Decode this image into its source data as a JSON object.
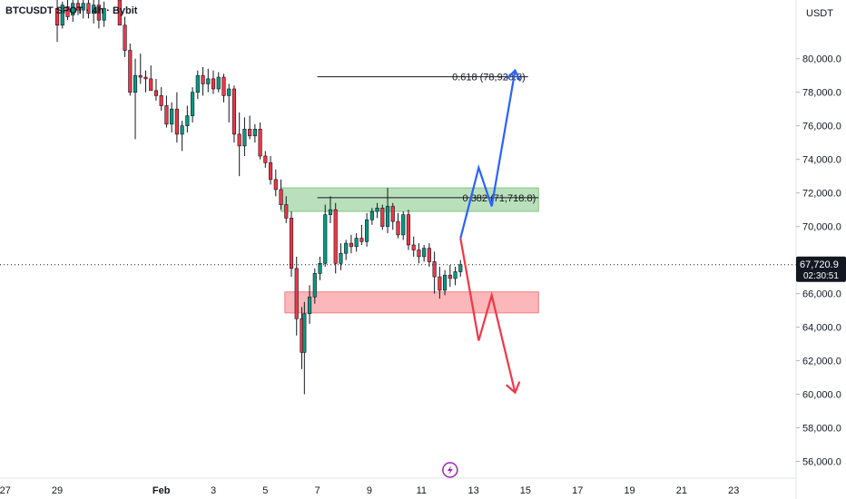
{
  "chart_data": {
    "type": "candlestick",
    "title": "BTCUSDT SPOT · 4h · Bybit",
    "currency_label": "USDT",
    "y_ticks": [
      "80,000.0",
      "78,000.0",
      "76,000.0",
      "74,000.0",
      "72,000.0",
      "70,000.0",
      "66,000.0",
      "64,000.0",
      "62,000.0",
      "60,000.0",
      "58,000.0",
      "56,000.0"
    ],
    "y_tick_values": [
      80000,
      78000,
      76000,
      74000,
      72000,
      70000,
      66000,
      64000,
      62000,
      60000,
      58000,
      56000
    ],
    "ylim": [
      55000,
      83500
    ],
    "x_ticks": [
      "27",
      "29",
      "Feb",
      "3",
      "5",
      "7",
      "9",
      "11",
      "13",
      "15",
      "17",
      "19",
      "21",
      "23"
    ],
    "x_tick_days": [
      -5,
      -3,
      1,
      3,
      5,
      7,
      9,
      11,
      13,
      15,
      17,
      19,
      21,
      23
    ],
    "xlim": [
      -5.2,
      25.4
    ],
    "current_price": {
      "label": "67,720.9",
      "countdown": "02:30:51",
      "value": 67720.9
    },
    "fib_levels": [
      {
        "label": "0.618 (78,920.8)",
        "value": 78920.8
      },
      {
        "label": "0.382 (71,718.8)",
        "value": 71718.8
      }
    ],
    "zones": [
      {
        "kind": "resistance",
        "top": 72300,
        "bottom": 70900,
        "color": "#81c784",
        "from_day": 5.6,
        "to_day": 15.5
      },
      {
        "kind": "support",
        "top": 66100,
        "bottom": 64850,
        "color": "#f77c80",
        "from_day": 5.75,
        "to_day": 15.5
      }
    ],
    "bullish_path": {
      "color": "#2962ff",
      "points": [
        [
          12.5,
          69300
        ],
        [
          13.2,
          73500
        ],
        [
          13.7,
          71200
        ],
        [
          14.6,
          79300
        ]
      ]
    },
    "bearish_path": {
      "color": "#f23645",
      "points": [
        [
          12.5,
          69300
        ],
        [
          13.2,
          63200
        ],
        [
          13.7,
          65900
        ],
        [
          14.6,
          60100
        ]
      ]
    },
    "up_color": "#089981",
    "down_color": "#f23645",
    "candles": [
      [
        -3.0,
        83000,
        83600,
        81000,
        82000
      ],
      [
        -2.8,
        82000,
        83400,
        81800,
        83200
      ],
      [
        -2.6,
        83100,
        83600,
        82300,
        82500
      ],
      [
        -2.4,
        82600,
        83700,
        82200,
        83300
      ],
      [
        -2.2,
        83300,
        83800,
        82600,
        82900
      ],
      [
        -2.0,
        82900,
        83500,
        82400,
        83300
      ],
      [
        -1.8,
        83300,
        83800,
        82400,
        82700
      ],
      [
        -1.6,
        82700,
        83500,
        82100,
        83200
      ],
      [
        -1.4,
        83200,
        83700,
        81800,
        82300
      ],
      [
        -1.2,
        82300,
        83400,
        81900,
        83000
      ],
      [
        -0.6,
        83500,
        83800,
        82000,
        82000
      ],
      [
        -0.4,
        82000,
        82500,
        80100,
        80500
      ],
      [
        -0.2,
        80500,
        80900,
        77800,
        78000
      ],
      [
        0.0,
        78000,
        80000,
        75200,
        79000
      ],
      [
        0.2,
        79000,
        80300,
        78500,
        78900
      ],
      [
        0.4,
        78900,
        79300,
        78000,
        78800
      ],
      [
        0.6,
        78800,
        79600,
        78200,
        78100
      ],
      [
        0.8,
        78100,
        78800,
        77500,
        77800
      ],
      [
        1.0,
        77800,
        78300,
        76900,
        77200
      ],
      [
        1.2,
        77200,
        77800,
        75900,
        76100
      ],
      [
        1.4,
        76100,
        77400,
        75600,
        77000
      ],
      [
        1.6,
        77000,
        78000,
        75000,
        75500
      ],
      [
        1.8,
        75500,
        76300,
        74500,
        76000
      ],
      [
        2.0,
        76000,
        77200,
        75600,
        76600
      ],
      [
        2.2,
        76600,
        78300,
        76200,
        78000
      ],
      [
        2.4,
        78000,
        79300,
        77600,
        79000
      ],
      [
        2.6,
        79000,
        79500,
        77800,
        78500
      ],
      [
        2.8,
        78500,
        79400,
        78000,
        78800
      ],
      [
        3.0,
        78800,
        79300,
        77900,
        78200
      ],
      [
        3.2,
        78200,
        79200,
        78000,
        78900
      ],
      [
        3.4,
        78900,
        79100,
        77400,
        77800
      ],
      [
        3.6,
        77800,
        78500,
        76200,
        78200
      ],
      [
        3.8,
        78200,
        78400,
        75000,
        75500
      ],
      [
        4.0,
        75500,
        76800,
        73000,
        74800
      ],
      [
        4.2,
        74800,
        76500,
        74200,
        75800
      ],
      [
        4.4,
        75800,
        76600,
        75200,
        75400
      ],
      [
        4.6,
        75400,
        76100,
        75000,
        75800
      ],
      [
        4.8,
        75800,
        76200,
        74000,
        74200
      ],
      [
        5.0,
        74200,
        74500,
        73500,
        73800
      ],
      [
        5.2,
        73800,
        74200,
        72500,
        72800
      ],
      [
        5.4,
        72800,
        73400,
        71800,
        72200
      ],
      [
        5.6,
        72200,
        72800,
        71000,
        71300
      ],
      [
        5.8,
        71300,
        71800,
        70200,
        70500
      ],
      [
        6.0,
        70500,
        70900,
        67000,
        67500
      ],
      [
        6.2,
        67500,
        68200,
        63500,
        64500
      ],
      [
        6.4,
        64500,
        65200,
        61500,
        62500
      ],
      [
        6.5,
        62500,
        65500,
        60000,
        64800
      ],
      [
        6.7,
        64800,
        66500,
        64200,
        65800
      ],
      [
        6.9,
        65800,
        67500,
        65400,
        67200
      ],
      [
        7.1,
        67200,
        68200,
        66800,
        67800
      ],
      [
        7.3,
        67800,
        71300,
        67600,
        70700
      ],
      [
        7.5,
        70700,
        71800,
        70200,
        71000
      ],
      [
        7.7,
        71000,
        71400,
        67200,
        67800
      ],
      [
        7.9,
        67800,
        69000,
        67400,
        68400
      ],
      [
        8.1,
        68400,
        69200,
        68000,
        69000
      ],
      [
        8.3,
        69000,
        69500,
        68400,
        68800
      ],
      [
        8.5,
        68800,
        69600,
        68500,
        69300
      ],
      [
        8.7,
        69300,
        70100,
        68900,
        69100
      ],
      [
        8.9,
        69100,
        70800,
        68800,
        70400
      ],
      [
        9.1,
        70400,
        71100,
        70100,
        70900
      ],
      [
        9.3,
        70900,
        71400,
        70500,
        71100
      ],
      [
        9.5,
        71100,
        71300,
        69800,
        70000
      ],
      [
        9.7,
        70000,
        72300,
        69600,
        71200
      ],
      [
        9.9,
        71200,
        71400,
        69800,
        70300
      ],
      [
        10.1,
        70300,
        70800,
        69300,
        69500
      ],
      [
        10.3,
        69500,
        70900,
        69200,
        70700
      ],
      [
        10.5,
        70700,
        71000,
        68600,
        68900
      ],
      [
        10.7,
        68900,
        69400,
        68200,
        68600
      ],
      [
        10.9,
        68600,
        69000,
        67800,
        68200
      ],
      [
        11.1,
        68200,
        68900,
        67900,
        68700
      ],
      [
        11.3,
        68700,
        69000,
        67600,
        67900
      ],
      [
        11.5,
        67900,
        68500,
        66000,
        67000
      ],
      [
        11.7,
        67000,
        67600,
        65700,
        66200
      ],
      [
        11.9,
        66200,
        67400,
        65900,
        67100
      ],
      [
        12.1,
        67100,
        67700,
        66400,
        66900
      ],
      [
        12.3,
        66900,
        67600,
        66500,
        67300
      ],
      [
        12.5,
        67300,
        68000,
        67000,
        67720.9
      ]
    ]
  },
  "icons": {
    "bottom_badge": "lightning-icon"
  }
}
